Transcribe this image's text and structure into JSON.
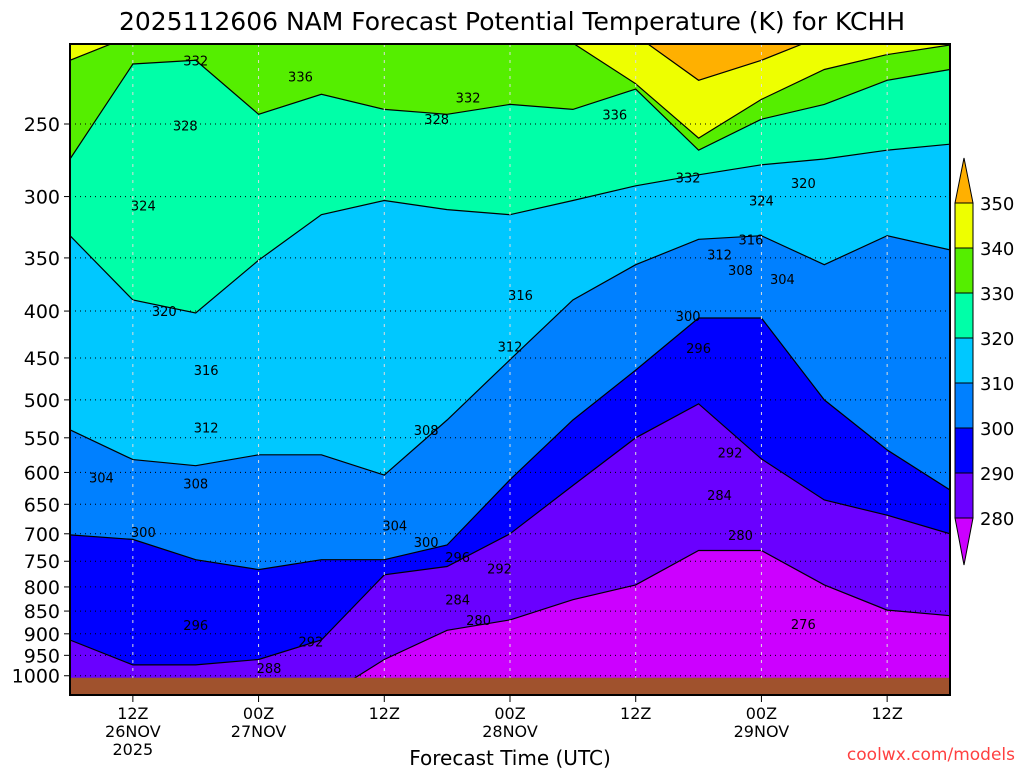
{
  "chart_data": {
    "type": "contour",
    "title": "2025112606 NAM Forecast Potential Temperature (K) for KCHH",
    "xlabel": "Forecast Time (UTC)",
    "ylabel": "",
    "watermark": "coolwx.com/models",
    "x_hours": [
      0,
      6,
      12,
      18,
      24,
      30,
      36,
      42,
      48,
      54,
      60,
      66,
      72,
      78,
      84
    ],
    "xlim": [
      0,
      84
    ],
    "ylim_hpa": [
      204,
      1049
    ],
    "y_scale": "log",
    "y_ticks": [
      250,
      300,
      350,
      400,
      450,
      500,
      550,
      600,
      650,
      700,
      750,
      800,
      850,
      900,
      950,
      1000
    ],
    "x_ticks": [
      {
        "hour": 6,
        "lines": [
          "12Z",
          "26NOV",
          "2025"
        ]
      },
      {
        "hour": 18,
        "lines": [
          "00Z",
          "27NOV"
        ]
      },
      {
        "hour": 30,
        "lines": [
          "12Z"
        ]
      },
      {
        "hour": 42,
        "lines": [
          "00Z",
          "28NOV"
        ]
      },
      {
        "hour": 54,
        "lines": [
          "12Z"
        ]
      },
      {
        "hour": 66,
        "lines": [
          "00Z",
          "29NOV"
        ]
      },
      {
        "hour": 78,
        "lines": [
          "12Z"
        ]
      }
    ],
    "colorbar": {
      "levels": [
        280,
        290,
        300,
        310,
        320,
        330,
        340,
        350
      ],
      "labels": [
        "280",
        "290",
        "300",
        "310",
        "320",
        "330",
        "340",
        "350"
      ],
      "colors": [
        "#cc00ff",
        "#6a00ff",
        "#0000ff",
        "#0080ff",
        "#00c8ff",
        "#00ffa8",
        "#55ee00",
        "#eeff00",
        "#ffb000"
      ]
    },
    "ground_color": "#a0522d",
    "isentropes_pressure_hpa": [
      {
        "theta": 280,
        "values": [
          1060,
          1060,
          1060,
          1060,
          1060,
          960,
          892,
          869,
          826,
          796,
          730,
          730,
          796,
          848,
          860
        ]
      },
      {
        "theta": 290,
        "values": [
          914,
          973,
          973,
          960,
          914,
          776,
          760,
          700,
          620,
          550,
          505,
          580,
          643,
          668,
          700
        ]
      },
      {
        "theta": 300,
        "values": [
          702,
          710,
          747,
          766,
          747,
          747,
          720,
          611,
          526,
          464,
          407,
          407,
          500,
          567,
          627
        ]
      },
      {
        "theta": 310,
        "values": [
          539,
          581,
          590,
          574,
          574,
          604,
          526,
          452,
          389,
          356,
          334,
          331,
          356,
          331,
          343
        ]
      },
      {
        "theta": 320,
        "values": [
          331,
          389,
          402,
          352,
          314,
          303,
          310,
          314,
          303,
          292,
          284,
          277,
          273,
          267,
          263
        ]
      },
      {
        "theta": 330,
        "values": [
          273,
          215,
          213,
          244,
          232,
          241,
          244,
          238,
          241,
          229,
          267,
          247,
          238,
          224,
          218
        ]
      },
      {
        "theta": 340,
        "values": [
          213,
          200,
          200,
          200,
          200,
          200,
          200,
          200,
          204,
          226,
          259,
          235,
          218,
          210,
          205
        ]
      },
      {
        "theta": 350,
        "values": [
          190,
          190,
          190,
          190,
          190,
          190,
          190,
          190,
          190,
          200,
          224,
          213,
          200,
          190,
          190
        ]
      }
    ],
    "contour_labels": [
      {
        "text": "332",
        "hour": 12,
        "p": 213
      },
      {
        "text": "336",
        "hour": 22,
        "p": 222
      },
      {
        "text": "332",
        "hour": 38,
        "p": 234
      },
      {
        "text": "328",
        "hour": 11,
        "p": 251
      },
      {
        "text": "328",
        "hour": 35,
        "p": 247
      },
      {
        "text": "336",
        "hour": 52,
        "p": 244
      },
      {
        "text": "332",
        "hour": 59,
        "p": 286
      },
      {
        "text": "320",
        "hour": 70,
        "p": 290
      },
      {
        "text": "324",
        "hour": 7,
        "p": 307
      },
      {
        "text": "324",
        "hour": 66,
        "p": 303
      },
      {
        "text": "316",
        "hour": 65,
        "p": 334
      },
      {
        "text": "312",
        "hour": 62,
        "p": 347
      },
      {
        "text": "308",
        "hour": 64,
        "p": 361
      },
      {
        "text": "304",
        "hour": 68,
        "p": 369
      },
      {
        "text": "316",
        "hour": 43,
        "p": 384
      },
      {
        "text": "320",
        "hour": 9,
        "p": 400
      },
      {
        "text": "300",
        "hour": 59,
        "p": 405
      },
      {
        "text": "296",
        "hour": 60,
        "p": 439
      },
      {
        "text": "312",
        "hour": 42,
        "p": 437
      },
      {
        "text": "316",
        "hour": 13,
        "p": 464
      },
      {
        "text": "312",
        "hour": 13,
        "p": 536
      },
      {
        "text": "308",
        "hour": 34,
        "p": 539
      },
      {
        "text": "292",
        "hour": 63,
        "p": 571
      },
      {
        "text": "304",
        "hour": 3,
        "p": 608
      },
      {
        "text": "308",
        "hour": 12,
        "p": 617
      },
      {
        "text": "284",
        "hour": 62,
        "p": 635
      },
      {
        "text": "304",
        "hour": 31,
        "p": 686
      },
      {
        "text": "300",
        "hour": 7,
        "p": 697
      },
      {
        "text": "280",
        "hour": 64,
        "p": 702
      },
      {
        "text": "300",
        "hour": 34,
        "p": 715
      },
      {
        "text": "296",
        "hour": 37,
        "p": 742
      },
      {
        "text": "292",
        "hour": 41,
        "p": 764
      },
      {
        "text": "284",
        "hour": 37,
        "p": 826
      },
      {
        "text": "280",
        "hour": 39,
        "p": 869
      },
      {
        "text": "296",
        "hour": 12,
        "p": 880
      },
      {
        "text": "276",
        "hour": 70,
        "p": 878
      },
      {
        "text": "292",
        "hour": 23,
        "p": 917
      },
      {
        "text": "288",
        "hour": 19,
        "p": 981
      }
    ]
  }
}
